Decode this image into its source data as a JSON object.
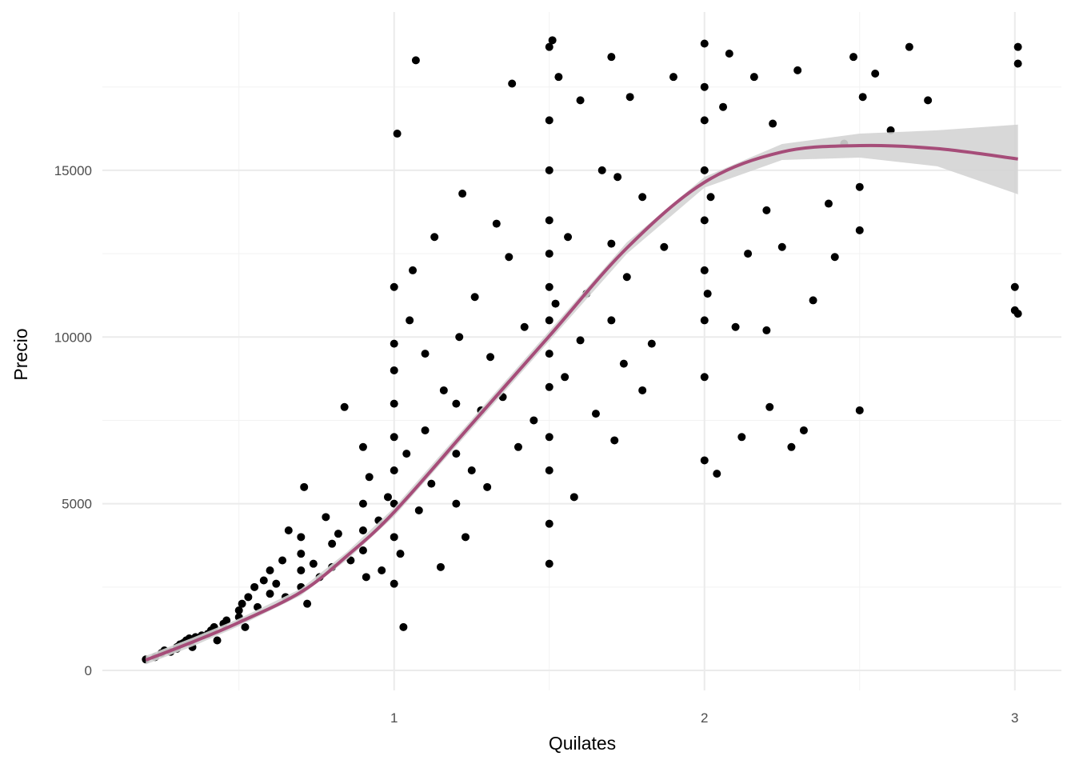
{
  "chart_data": {
    "type": "scatter",
    "x_label": "Quilates",
    "y_label": "Precio",
    "xlim": [
      0.06,
      3.15
    ],
    "ylim": [
      -599,
      19748
    ],
    "xticks": [
      1,
      2,
      3
    ],
    "yticks": [
      0,
      5000,
      10000,
      15000
    ],
    "xminor": [
      0.5,
      1.5,
      2.5
    ],
    "yminor": [
      2500,
      7500,
      12500,
      17500
    ],
    "grid": true,
    "series": [
      {
        "color": "#000000",
        "x": [
          0.2,
          0.23,
          0.25,
          0.26,
          0.28,
          0.3,
          0.3,
          0.31,
          0.32,
          0.33,
          0.34,
          0.35,
          0.36,
          0.38,
          0.4,
          0.41,
          0.42,
          0.43,
          0.45,
          0.46,
          0.5,
          0.5,
          0.51,
          0.52,
          0.53,
          0.55,
          0.56,
          0.58,
          0.6,
          0.6,
          0.62,
          0.64,
          0.65,
          0.66,
          0.7,
          0.7,
          0.7,
          0.7,
          0.71,
          0.72,
          0.74,
          0.76,
          0.78,
          0.8,
          0.8,
          0.82,
          0.84,
          0.86,
          0.9,
          0.9,
          0.9,
          0.9,
          0.91,
          0.92,
          0.95,
          0.96,
          0.98,
          1.0,
          1.0,
          1.0,
          1.0,
          1.0,
          1.0,
          1.0,
          1.0,
          1.0,
          1.01,
          1.02,
          1.03,
          1.04,
          1.05,
          1.06,
          1.07,
          1.08,
          1.1,
          1.1,
          1.12,
          1.13,
          1.15,
          1.16,
          1.2,
          1.2,
          1.2,
          1.21,
          1.22,
          1.23,
          1.25,
          1.26,
          1.28,
          1.3,
          1.31,
          1.33,
          1.35,
          1.37,
          1.38,
          1.4,
          1.42,
          1.45,
          1.5,
          1.5,
          1.5,
          1.5,
          1.5,
          1.5,
          1.5,
          1.5,
          1.5,
          1.5,
          1.5,
          1.5,
          1.5,
          1.51,
          1.52,
          1.53,
          1.55,
          1.56,
          1.58,
          1.6,
          1.6,
          1.62,
          1.65,
          1.67,
          1.7,
          1.7,
          1.7,
          1.71,
          1.72,
          1.74,
          1.75,
          1.76,
          1.8,
          1.8,
          1.83,
          1.87,
          1.9,
          2.0,
          2.0,
          2.0,
          2.0,
          2.0,
          2.0,
          2.0,
          2.0,
          2.0,
          2.01,
          2.02,
          2.04,
          2.06,
          2.08,
          2.1,
          2.12,
          2.14,
          2.16,
          2.2,
          2.2,
          2.21,
          2.22,
          2.25,
          2.28,
          2.3,
          2.32,
          2.35,
          2.4,
          2.42,
          2.45,
          2.48,
          2.5,
          2.5,
          2.5,
          2.51,
          2.55,
          2.6,
          2.66,
          2.72,
          3.0,
          3.0,
          3.01,
          3.01,
          3.01
        ],
        "values": [
          330,
          400,
          520,
          600,
          560,
          650,
          700,
          780,
          820,
          900,
          960,
          700,
          1000,
          1050,
          1100,
          1200,
          1300,
          900,
          1400,
          1500,
          1600,
          1800,
          2000,
          1300,
          2200,
          2500,
          1900,
          2700,
          2300,
          3000,
          2600,
          3300,
          2200,
          4200,
          2500,
          3000,
          3500,
          4000,
          5500,
          2000,
          3200,
          2800,
          4600,
          3100,
          3800,
          4100,
          7900,
          3300,
          3600,
          4200,
          5000,
          6700,
          2800,
          5800,
          4500,
          3000,
          5200,
          4000,
          5000,
          6000,
          7000,
          8000,
          9000,
          9800,
          11500,
          2600,
          16100,
          3500,
          1300,
          6500,
          10500,
          12000,
          18300,
          4800,
          7200,
          9500,
          5600,
          13000,
          3100,
          8400,
          5000,
          6500,
          8000,
          10000,
          14300,
          4000,
          6000,
          11200,
          7800,
          5500,
          9400,
          13400,
          8200,
          12400,
          17600,
          6700,
          10300,
          7500,
          3200,
          4400,
          6000,
          7000,
          8500,
          9500,
          10500,
          11500,
          12500,
          13500,
          15000,
          16500,
          18700,
          18900,
          11000,
          17800,
          8800,
          13000,
          5200,
          9900,
          17100,
          11300,
          7700,
          15000,
          10500,
          12800,
          18400,
          6900,
          14800,
          9200,
          11800,
          17200,
          8400,
          14200,
          9800,
          12700,
          17800,
          6300,
          8800,
          10500,
          12000,
          13500,
          15000,
          16500,
          17500,
          18800,
          11300,
          14200,
          5900,
          16900,
          18500,
          10300,
          7000,
          12500,
          17800,
          13800,
          10200,
          7900,
          16400,
          12700,
          6700,
          18000,
          7200,
          11100,
          14000,
          12400,
          15800,
          18400,
          7800,
          13200,
          14500,
          17200,
          17900,
          16200,
          18700,
          17100,
          10800,
          11500,
          18700,
          18200,
          10700
        ]
      }
    ],
    "smooth": {
      "color": "#a64d79",
      "band_color": "#d4d4d4",
      "x": [
        0.2,
        0.35,
        0.5,
        0.7,
        0.85,
        1.0,
        1.25,
        1.5,
        1.75,
        2.0,
        2.25,
        2.5,
        2.75,
        3.01
      ],
      "values": [
        312,
        850,
        1440,
        2350,
        3450,
        4750,
        7390,
        10030,
        12670,
        14640,
        15550,
        15740,
        15650,
        15340
      ],
      "lower": [
        180,
        720,
        1330,
        2250,
        3330,
        4620,
        7250,
        9880,
        12500,
        14480,
        15310,
        15380,
        15120,
        14280
      ],
      "upper": [
        440,
        980,
        1550,
        2450,
        3570,
        4880,
        7530,
        10180,
        12840,
        14800,
        15790,
        16100,
        16200,
        16370
      ]
    }
  }
}
